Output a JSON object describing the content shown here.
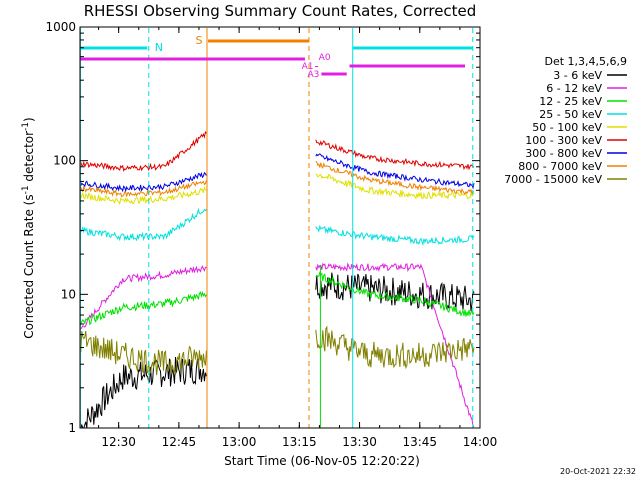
{
  "chart_data": {
    "type": "line",
    "title": "RHESSI Observing Summary Count Rates, Corrected",
    "xlabel": "Start Time (06-Nov-05 12:20:22)",
    "ylabel": "Corrected Count Rate (s⁻¹ detector⁻¹)",
    "ylabel_parts": {
      "main": "Corrected Count Rate (s",
      "exp1": "-1",
      "mid": " detector",
      "exp2": "-1",
      "end": ")"
    },
    "yscale": "log",
    "ylim": [
      1,
      1000
    ],
    "xlim_minutes": [
      20.37,
      120
    ],
    "x_ticks": [
      "12:30",
      "12:45",
      "13:00",
      "13:15",
      "13:30",
      "13:45",
      "14:00"
    ],
    "y_ticks": [
      "1",
      "10",
      "100",
      "1000"
    ],
    "footer": "20-Oct-2021 22:32",
    "legend_title": "Det 1,3,4,5,6,9",
    "legend_position": "right",
    "data_gap": [
      "12:52",
      "13:19"
    ],
    "series": [
      {
        "name": "3 - 6 keV",
        "color": "#000000",
        "pre": [
          1.0,
          2.4,
          2.6,
          2.8
        ],
        "post": [
          12,
          11,
          10,
          9
        ]
      },
      {
        "name": "6 - 12 keV",
        "color": "#e020e0",
        "pre": [
          5.5,
          13,
          14,
          16
        ],
        "post": [
          16,
          16,
          16,
          1
        ]
      },
      {
        "name": "12 - 25 keV",
        "color": "#00e000",
        "pre": [
          6.0,
          8.0,
          8.5,
          10
        ],
        "post": [
          14,
          10,
          9,
          7
        ]
      },
      {
        "name": "25 - 50 keV",
        "color": "#00e0e0",
        "pre": [
          30,
          27,
          27,
          45
        ],
        "post": [
          31,
          27,
          25,
          26
        ]
      },
      {
        "name": "50 - 100 keV",
        "color": "#e0e000",
        "pre": [
          55,
          50,
          52,
          60
        ],
        "post": [
          80,
          60,
          55,
          55
        ]
      },
      {
        "name": "100 - 300 keV",
        "color": "#e00000",
        "pre": [
          95,
          88,
          90,
          160
        ],
        "post": [
          140,
          105,
          95,
          90
        ]
      },
      {
        "name": "300 - 800 keV",
        "color": "#0000e0",
        "pre": [
          68,
          62,
          64,
          80
        ],
        "post": [
          110,
          82,
          72,
          65
        ]
      },
      {
        "name": "800 - 7000 keV",
        "color": "#f08000",
        "pre": [
          62,
          56,
          58,
          70
        ],
        "post": [
          95,
          72,
          63,
          58
        ]
      },
      {
        "name": "7000 - 15000 keV",
        "color": "#808000",
        "pre": [
          4.5,
          3.5,
          3.0,
          3.5
        ],
        "post": [
          5.0,
          3.5,
          3.5,
          4.0
        ]
      }
    ],
    "annotations": [
      {
        "label": "N",
        "color": "#00e0e0"
      },
      {
        "label": "S",
        "color": "#f08000"
      },
      {
        "label": "A0",
        "color": "#e020e0"
      },
      {
        "label": "A1",
        "color": "#e020e0"
      },
      {
        "label": "A3",
        "color": "#e020e0"
      }
    ],
    "grid": false
  }
}
